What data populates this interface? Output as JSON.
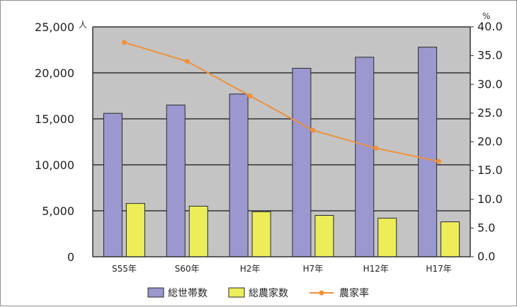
{
  "chart_data": {
    "type": "bar",
    "categories": [
      "S55年",
      "S60年",
      "H2年",
      "H7年",
      "H12年",
      "H17年"
    ],
    "series": [
      {
        "name": "総世帯数",
        "axis": "left",
        "kind": "bar",
        "color": "#9b97cf",
        "values": [
          15600,
          16500,
          17700,
          20500,
          21700,
          22800
        ]
      },
      {
        "name": "総農家数",
        "axis": "left",
        "kind": "bar",
        "color": "#eded5a",
        "values": [
          5800,
          5500,
          4900,
          4500,
          4200,
          3800
        ]
      },
      {
        "name": "農家率",
        "axis": "right",
        "kind": "line",
        "color": "#f0913a",
        "values": [
          37.3,
          34.0,
          28.0,
          22.0,
          18.9,
          16.6
        ]
      }
    ],
    "y_left": {
      "unit": "人",
      "ylim": [
        0,
        25000
      ],
      "ticks": [
        "0",
        "5,000",
        "10,000",
        "15,000",
        "20,000",
        "25,000"
      ]
    },
    "y_right": {
      "unit": "%",
      "ylim": [
        0,
        40
      ],
      "ticks": [
        "0.0",
        "5.0",
        "10.0",
        "15.0",
        "20.0",
        "25.0",
        "30.0",
        "35.0",
        "40.0"
      ]
    },
    "grid": true,
    "plot_background": "#c4c4c4",
    "legend_position": "bottom-center",
    "title": "",
    "xlabel": "",
    "ylabel": ""
  }
}
